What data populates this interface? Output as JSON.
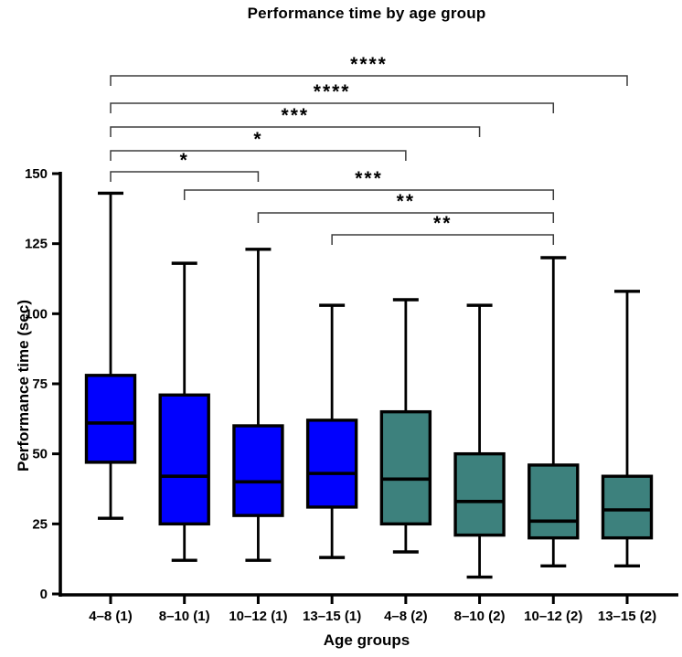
{
  "chart": {
    "title": "Performance time by age group",
    "x_label": "Age groups",
    "y_label": "Performance time (sec)"
  },
  "chart_data": {
    "type": "boxplot",
    "title": "Performance time by age group",
    "xlabel": "Age groups",
    "ylabel": "Performance time (sec)",
    "ylim": [
      0,
      150
    ],
    "yticks": [
      0,
      25,
      50,
      75,
      100,
      125,
      150
    ],
    "grid": false,
    "legend": "none",
    "colors": {
      "cohort1_fill": "#0101fe",
      "cohort2_fill": "#3d817d",
      "stroke": "#000000",
      "bracket": "#3d3d3d"
    },
    "categories": [
      "4–8 (1)",
      "8–10 (1)",
      "10–12 (1)",
      "13–15 (1)",
      "4–8 (2)",
      "8–10 (2)",
      "10–12 (2)",
      "13–15 (2)"
    ],
    "series": [
      {
        "name": "4–8 (1)",
        "cohort": 1,
        "color": "#0101fe",
        "whisker_low": 27,
        "q1": 47,
        "median": 61,
        "q3": 78,
        "whisker_high": 143
      },
      {
        "name": "8–10 (1)",
        "cohort": 1,
        "color": "#0101fe",
        "whisker_low": 12,
        "q1": 25,
        "median": 42,
        "q3": 71,
        "whisker_high": 118
      },
      {
        "name": "10–12 (1)",
        "cohort": 1,
        "color": "#0101fe",
        "whisker_low": 12,
        "q1": 28,
        "median": 40,
        "q3": 60,
        "whisker_high": 123
      },
      {
        "name": "13–15 (1)",
        "cohort": 1,
        "color": "#0101fe",
        "whisker_low": 13,
        "q1": 31,
        "median": 43,
        "q3": 62,
        "whisker_high": 103
      },
      {
        "name": "4–8 (2)",
        "cohort": 2,
        "color": "#3d817d",
        "whisker_low": 15,
        "q1": 25,
        "median": 41,
        "q3": 65,
        "whisker_high": 105
      },
      {
        "name": "8–10 (2)",
        "cohort": 2,
        "color": "#3d817d",
        "whisker_low": 6,
        "q1": 21,
        "median": 33,
        "q3": 50,
        "whisker_high": 103
      },
      {
        "name": "10–12 (2)",
        "cohort": 2,
        "color": "#3d817d",
        "whisker_low": 10,
        "q1": 20,
        "median": 26,
        "q3": 46,
        "whisker_high": 120
      },
      {
        "name": "13–15 (2)",
        "cohort": 2,
        "color": "#3d817d",
        "whisker_low": 10,
        "q1": 20,
        "median": 30,
        "q3": 42,
        "whisker_high": 108
      }
    ],
    "significance_brackets": [
      {
        "from": "4–8 (1)",
        "to": "13–15 (2)",
        "label": "****"
      },
      {
        "from": "4–8 (1)",
        "to": "10–12 (2)",
        "label": "****"
      },
      {
        "from": "4–8 (1)",
        "to": "8–10 (2)",
        "label": "***"
      },
      {
        "from": "4–8 (1)",
        "to": "4–8 (2)",
        "label": "*"
      },
      {
        "from": "4–8 (1)",
        "to": "10–12 (1)",
        "label": "*"
      },
      {
        "from": "8–10 (1)",
        "to": "10–12 (2)",
        "label": "***"
      },
      {
        "from": "10–12 (1)",
        "to": "10–12 (2)",
        "label": "**"
      },
      {
        "from": "13–15 (1)",
        "to": "10–12 (2)",
        "label": "**"
      }
    ]
  }
}
